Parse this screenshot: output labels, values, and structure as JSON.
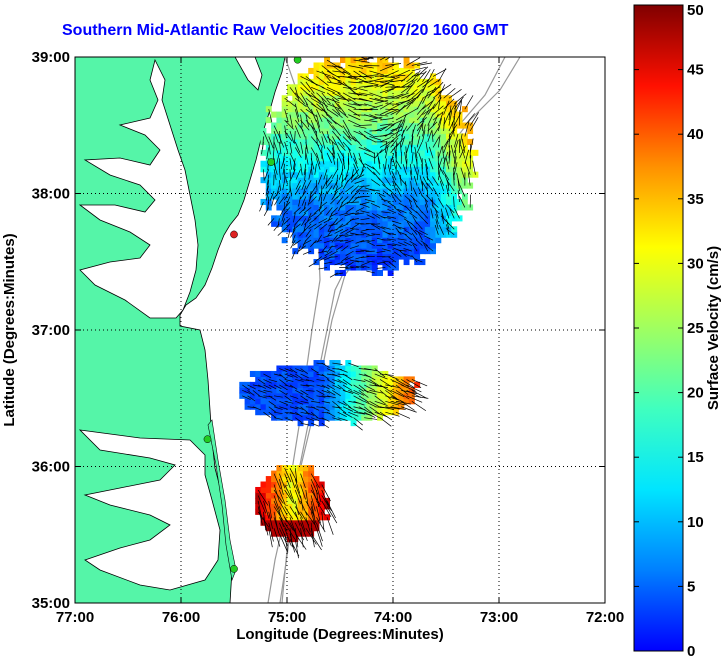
{
  "title": "Southern Mid-Atlantic Raw Velocities 2008/07/20 1600 GMT",
  "chart_data": {
    "type": "map",
    "xlabel": "Longitude (Degrees:Minutes)",
    "ylabel": "Latitude (Degrees:Minutes)",
    "x_ticks": [
      "77:00",
      "76:00",
      "75:00",
      "74:00",
      "73:00",
      "72:00"
    ],
    "y_ticks": [
      "39:00",
      "38:00",
      "37:00",
      "36:00",
      "35:00"
    ],
    "xlim": [
      -77,
      -72
    ],
    "ylim": [
      35,
      39
    ],
    "grid": true,
    "colorbar": {
      "label": "Surface Velocity (cm/s)",
      "min": 0,
      "max": 50,
      "ticks": [
        "50",
        "45",
        "40",
        "35",
        "30",
        "25",
        "20",
        "15",
        "10",
        "5",
        "0"
      ],
      "colormap": "jet"
    },
    "velocity_regions": [
      {
        "name": "northern",
        "lon_range": [
          -75.25,
          -73.25
        ],
        "lat_range": [
          37.4,
          39.0
        ],
        "speed_range": [
          5,
          45
        ]
      },
      {
        "name": "central",
        "lon_range": [
          -75.45,
          -73.8
        ],
        "lat_range": [
          36.3,
          36.75
        ],
        "speed_range": [
          8,
          48
        ]
      },
      {
        "name": "southern",
        "lon_range": [
          -75.3,
          -74.6
        ],
        "lat_range": [
          35.45,
          36.0
        ],
        "speed_range": [
          20,
          50
        ]
      }
    ],
    "stations": [
      {
        "lon": -74.9,
        "lat": 38.98,
        "color": "#22cc22"
      },
      {
        "lon": -75.15,
        "lat": 38.23,
        "color": "#22cc22"
      },
      {
        "lon": -75.5,
        "lat": 37.7,
        "color": "#dd2222"
      },
      {
        "lon": -75.75,
        "lat": 36.2,
        "color": "#22cc22"
      },
      {
        "lon": -75.5,
        "lat": 35.25,
        "color": "#22cc22"
      }
    ]
  },
  "colors": {
    "land": "#55f5a8",
    "water": "#ffffff",
    "title": "#0000ff",
    "bathymetry": "#999999"
  }
}
